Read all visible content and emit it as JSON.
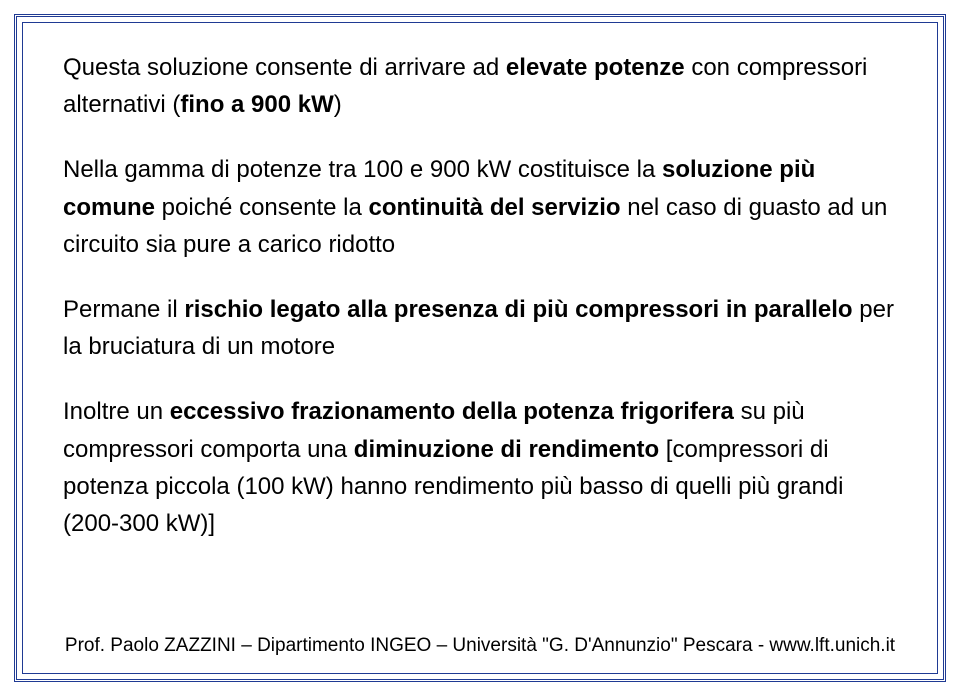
{
  "slide": {
    "border_color": "#1f3a93",
    "background_color": "#ffffff",
    "text_color": "#000000",
    "body_fontsize": 24,
    "footer_fontsize": 19,
    "paragraphs": [
      {
        "runs": [
          {
            "text": "Questa soluzione consente di arrivare ad ",
            "bold": false
          },
          {
            "text": "elevate potenze",
            "bold": true
          },
          {
            "text": " con compressori alternativi (",
            "bold": false
          },
          {
            "text": "fino a 900 kW",
            "bold": true
          },
          {
            "text": ")",
            "bold": false
          }
        ]
      },
      {
        "runs": [
          {
            "text": "Nella gamma di potenze tra 100 e 900 kW costituisce la ",
            "bold": false
          },
          {
            "text": "soluzione più comune",
            "bold": true
          },
          {
            "text": " poiché consente la ",
            "bold": false
          },
          {
            "text": "continuità del servizio",
            "bold": true
          },
          {
            "text": " nel caso di guasto ad un circuito sia pure a carico ridotto",
            "bold": false
          }
        ]
      },
      {
        "runs": [
          {
            "text": "Permane il ",
            "bold": false
          },
          {
            "text": "rischio legato alla presenza di più compressori in parallelo",
            "bold": true
          },
          {
            "text": " per la bruciatura di un motore",
            "bold": false
          }
        ]
      },
      {
        "runs": [
          {
            "text": "Inoltre un ",
            "bold": false
          },
          {
            "text": "eccessivo frazionamento della potenza frigorifera",
            "bold": true
          },
          {
            "text": " su più compressori comporta una ",
            "bold": false
          },
          {
            "text": "diminuzione di rendimento",
            "bold": true
          },
          {
            "text": " [compressori di potenza piccola (100 kW) hanno rendimento più basso di quelli più grandi (200-300 kW)]",
            "bold": false
          }
        ]
      }
    ],
    "footer": "Prof. Paolo ZAZZINI – Dipartimento INGEO – Università \"G. D'Annunzio\" Pescara - www.lft.unich.it"
  }
}
